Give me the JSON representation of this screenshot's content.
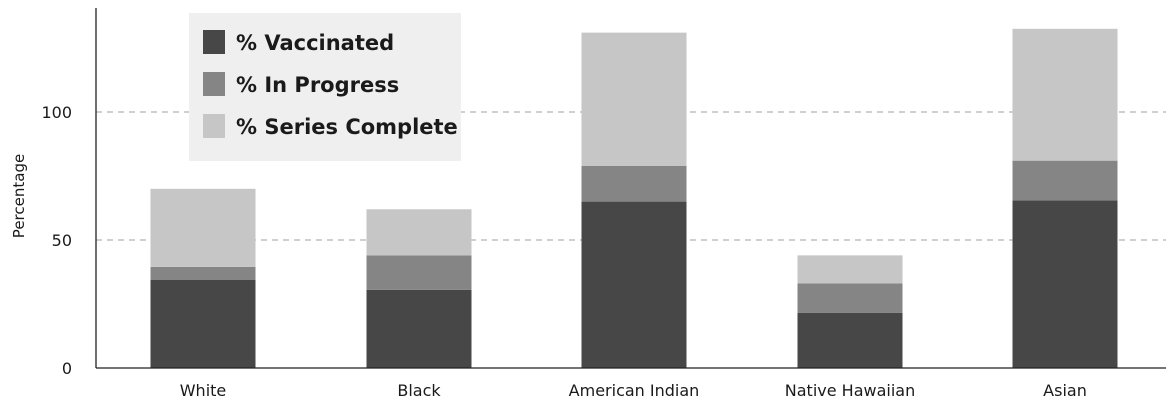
{
  "chart_data": {
    "type": "bar",
    "stacked": true,
    "title": "",
    "xlabel": "",
    "ylabel": "Percentage",
    "ylim": [
      0,
      140
    ],
    "yticks": [
      0,
      50,
      100
    ],
    "grid": "horizontal dashed at 50 and 100",
    "legend_position": "top-left",
    "categories": [
      "White",
      "Black",
      "American Indian",
      "Native Hawaiian",
      "Asian"
    ],
    "series": [
      {
        "name": "% Vaccinated",
        "color": "#474747",
        "values": [
          34.5,
          30.5,
          65,
          21.5,
          65.5
        ]
      },
      {
        "name": "% In Progress",
        "color": "#858585",
        "values": [
          5,
          13.5,
          14,
          11.5,
          15.5
        ]
      },
      {
        "name": "% Series Complete",
        "color": "#c6c6c6",
        "values": [
          30.5,
          18,
          52,
          11,
          51.5
        ]
      }
    ]
  }
}
